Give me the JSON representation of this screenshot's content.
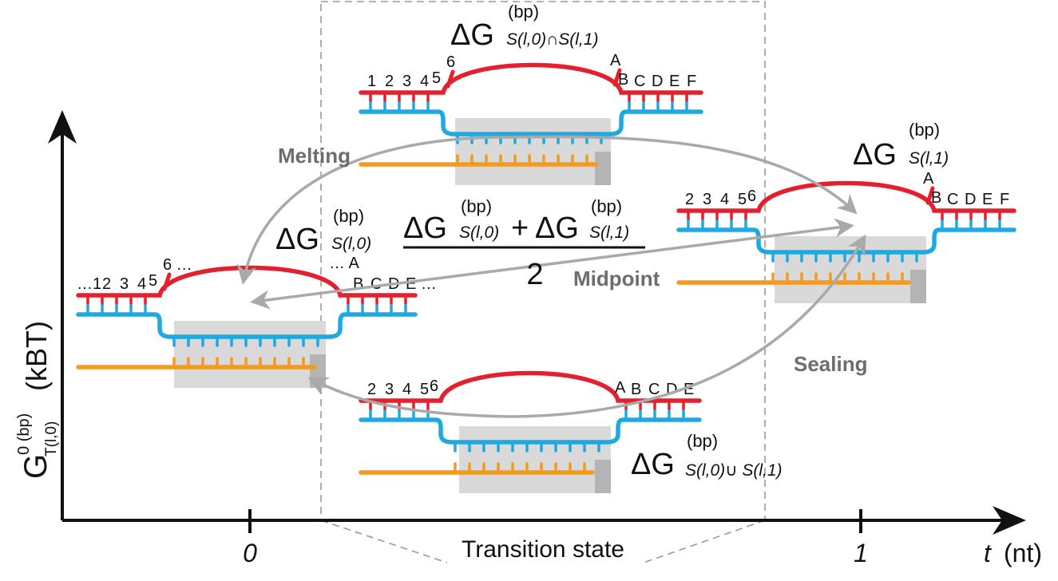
{
  "axis": {
    "y_label_main": "G",
    "y_label_sup": "0 (bp)",
    "y_label_sub": "T(l,0)",
    "y_label_unit": "(kBT)",
    "x_label_var": "t",
    "x_label_unit": "(nt)",
    "tick_0": "0",
    "tick_1": "1",
    "transition_label": "Transition state"
  },
  "arrows": {
    "melting": "Melting",
    "sealing": "Sealing",
    "midpoint": "Midpoint"
  },
  "formulas": {
    "top": {
      "delta": "ΔG",
      "sup": "(bp)",
      "sub": "S(l,0)∩S(l,1)"
    },
    "right": {
      "delta": "ΔG",
      "sup": "(bp)",
      "sub": "S(l,1)"
    },
    "left": {
      "delta": "ΔG",
      "sup": "(bp)",
      "sub": "S(l,0)"
    },
    "bottom": {
      "delta": "ΔG",
      "sup": "(bp)",
      "sub": "S(l,0)∪ S(l,1)"
    },
    "midpoint_num_a": {
      "delta": "ΔG",
      "sup": "(bp)",
      "sub": "S(l,0)"
    },
    "midpoint_plus": "+",
    "midpoint_num_b": {
      "delta": "ΔG",
      "sup": "(bp)",
      "sub": "S(l,1)"
    },
    "midpoint_den": "2"
  },
  "states": {
    "top": {
      "left_labels": [
        "1",
        "2",
        "3",
        "4"
      ],
      "left_tip": "5",
      "raised_left": "6",
      "raised_right": "A",
      "right_tip": "B",
      "right_labels": [
        "C",
        "D",
        "E",
        "F"
      ]
    },
    "right": {
      "left_labels": [
        "2",
        "3",
        "4",
        "5"
      ],
      "left_tip": "6",
      "raised_right": "A",
      "right_tip": "B",
      "right_labels": [
        "C",
        "D",
        "E",
        "F"
      ]
    },
    "left": {
      "left_labels": [
        "…1",
        "2",
        "3",
        "4"
      ],
      "left_tip": "5",
      "raised_left": "6 …",
      "raised_right": "… A",
      "right_labels": [
        "B",
        "C",
        "D",
        "E …"
      ]
    },
    "bottom": {
      "left_labels": [
        "2",
        "3",
        "4",
        "5"
      ],
      "left_tip": "6",
      "right_tip": "A",
      "right_labels": [
        "B",
        "C",
        "D",
        "E"
      ]
    }
  },
  "colors": {
    "red": "#e5202e",
    "blue": "#1ea9e1",
    "orange": "#f39a1f",
    "arrow_gray": "#a9a9a9",
    "box_gray": "#d9d9d9",
    "box_dark": "#b4b4b4"
  }
}
